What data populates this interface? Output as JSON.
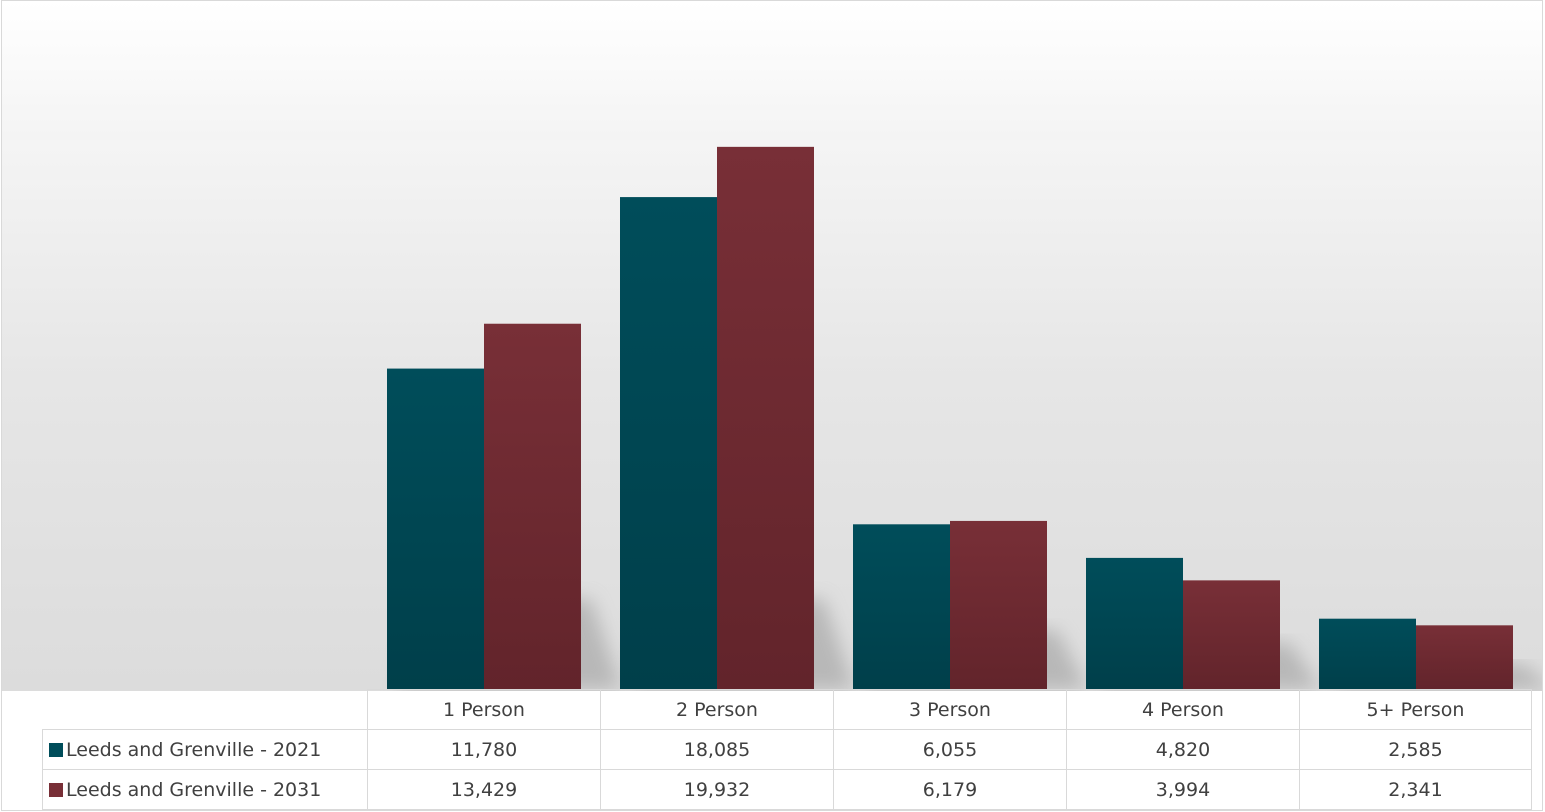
{
  "chart_data": {
    "type": "bar",
    "categories": [
      "1 Person",
      "2 Person",
      "3 Person",
      "4 Person",
      "5+ Person"
    ],
    "series": [
      {
        "name": "Leeds and Grenville - 2021",
        "values": [
          11780,
          18085,
          6055,
          4820,
          2585
        ],
        "labels": [
          "11,780",
          "18,085",
          "6,055",
          "4,820",
          "2,585"
        ],
        "color": "#004d5a",
        "color_dark": "#003f4a"
      },
      {
        "name": "Leeds and Grenville - 2031",
        "values": [
          13429,
          19932,
          6179,
          3994,
          2341
        ],
        "labels": [
          "13,429",
          "19,932",
          "6,179",
          "3,994",
          "2,341"
        ],
        "color": "#782f37",
        "color_dark": "#62242b"
      }
    ],
    "ylim": [
      0,
      25000
    ],
    "data_table": true,
    "legend": "data-table",
    "grid": false
  }
}
